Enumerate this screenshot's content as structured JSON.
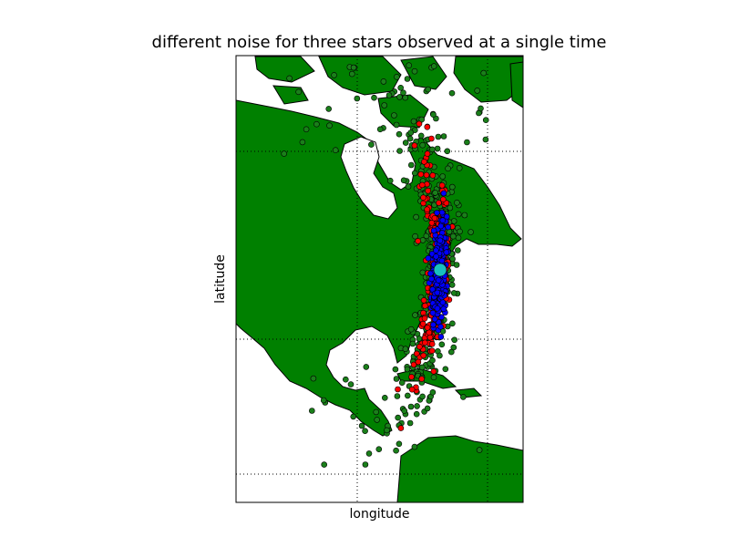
{
  "chart_data": {
    "type": "scatter",
    "title": "different noise for three stars observed at a single time",
    "xlabel": "longitude",
    "ylabel": "latitude",
    "background": "map of North America (basemap, green land, white water)",
    "grid": true,
    "colors": {
      "land": "#008000",
      "water": "#ffffff",
      "coast": "#000000",
      "green_series": "#1a7f1a",
      "red_series": "#ff0000",
      "blue_series": "#0000ff",
      "true_position": "#19bfbf"
    },
    "series": [
      {
        "color": "green",
        "description": "widest noise scatter"
      },
      {
        "color": "red",
        "description": "medium noise scatter"
      },
      {
        "color": "blue",
        "description": "smallest noise scatter"
      },
      {
        "color": "cyan",
        "description": "single large marker at the true position"
      }
    ]
  }
}
